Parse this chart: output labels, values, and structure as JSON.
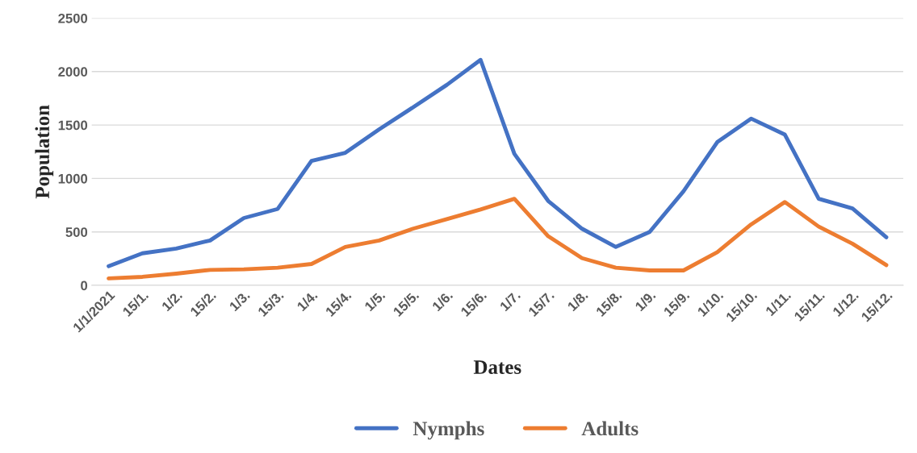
{
  "chart_data": {
    "type": "line",
    "xlabel": "Dates",
    "ylabel": "Population",
    "categories": [
      "1/1/2021",
      "15/1.",
      "1/2.",
      "15/2.",
      "1/3.",
      "15/3.",
      "1/4.",
      "15/4.",
      "1/5.",
      "15/5.",
      "1/6.",
      "15/6.",
      "1/7.",
      "15/7.",
      "1/8.",
      "15/8.",
      "1/9.",
      "15/9.",
      "1/10.",
      "15/10.",
      "1/11.",
      "15/11.",
      "1/12.",
      "15/12."
    ],
    "series": [
      {
        "name": "Nymphs",
        "color": "#4472c4",
        "values": [
          180,
          300,
          345,
          420,
          630,
          715,
          1165,
          1240,
          1460,
          1665,
          1875,
          2110,
          1230,
          790,
          530,
          360,
          500,
          880,
          1340,
          1560,
          1410,
          810,
          720,
          450
        ]
      },
      {
        "name": "Adults",
        "color": "#ed7d31",
        "values": [
          65,
          80,
          110,
          145,
          150,
          165,
          200,
          360,
          420,
          530,
          620,
          710,
          810,
          460,
          255,
          165,
          140,
          140,
          310,
          570,
          780,
          550,
          390,
          190
        ]
      }
    ],
    "ylim": [
      0,
      2500
    ],
    "yticks": [
      0,
      500,
      1000,
      1500,
      2000,
      2500
    ],
    "grid": "y",
    "legend": "bottom",
    "line_style": "solid",
    "marker": "none"
  }
}
